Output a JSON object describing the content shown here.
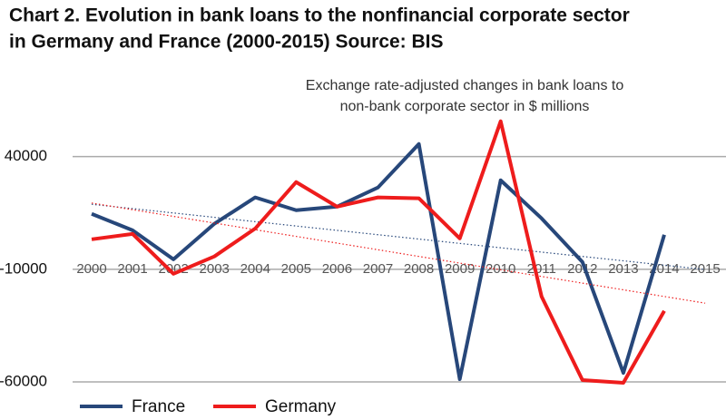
{
  "chart_data": {
    "type": "line",
    "title": [
      "Chart 2. Evolution in bank loans to the nonfinancial corporate sector",
      "in Germany and France (2000-2015) Source: BIS"
    ],
    "subtitle": [
      "Exchange rate-adjusted changes in bank loans to",
      "non-bank corporate sector in $ millions"
    ],
    "categories": [
      "2000",
      "2001",
      "2002",
      "2003",
      "2004",
      "2005",
      "2006",
      "2007",
      "2008",
      "2009",
      "2010",
      "2011",
      "2012",
      "2013",
      "2014",
      "2015"
    ],
    "series": [
      {
        "name": "France",
        "color": "#27477a",
        "values": [
          14600,
          7300,
          -5600,
          10200,
          21900,
          16200,
          17800,
          26300,
          45600,
          -58800,
          29500,
          12600,
          -6800,
          -56000,
          5300,
          null
        ]
      },
      {
        "name": "Germany",
        "color": "#ee1c1c",
        "values": [
          3300,
          5700,
          -12000,
          -4300,
          8100,
          28700,
          17800,
          21900,
          21500,
          3700,
          55700,
          -22100,
          -59200,
          -60400,
          -28500,
          null
        ]
      }
    ],
    "ylim": [
      -60000,
      60000
    ],
    "yticks": [
      -60000,
      -10000,
      40000
    ],
    "grid": true,
    "trendline": true,
    "legend": "bottom-left"
  }
}
